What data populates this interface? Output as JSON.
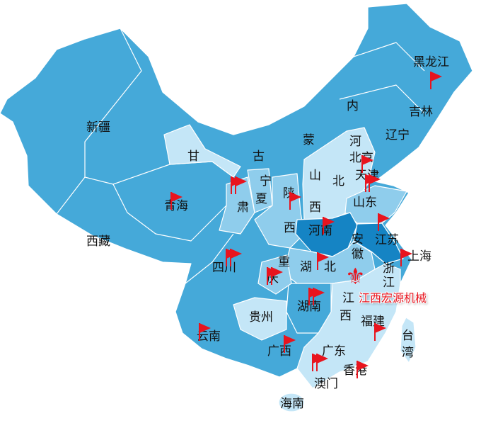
{
  "colors": {
    "base": "#45a9d9",
    "light": "#c4e6f7",
    "medium": "#8fcdec",
    "dark": "#1584c4",
    "flag": "#e8141e",
    "border": "#ffffff"
  },
  "provinces": {
    "heilongjiang": "黑龙江",
    "jilin": "吉林",
    "liaoning": "辽宁",
    "neimeng_1": "内",
    "neimeng_2": "蒙",
    "neimeng_3": "古",
    "xinjiang": "新疆",
    "xizang": "西藏",
    "qinghai": "青海",
    "gansu_1": "甘",
    "gansu_2": "肃",
    "ningxia_1": "宁",
    "ningxia_2": "夏",
    "shaanxi_1": "陕",
    "shaanxi_2": "西",
    "shanxi_1": "山",
    "shanxi_2": "西",
    "hebei_1": "河",
    "hebei_2": "北",
    "beijing": "北京",
    "tianjin": "天津",
    "shandong": "山东",
    "henan": "河南",
    "jiangsu": "江苏",
    "shanghai": "上海",
    "anhui_1": "安",
    "anhui_2": "徽",
    "zhejiang_1": "浙",
    "zhejiang_2": "江",
    "hubei_1": "湖",
    "hubei_2": "北",
    "chongqing_1": "重",
    "chongqing_2": "庆",
    "sichuan": "四川",
    "hunan": "湖南",
    "jiangxi_1": "江",
    "jiangxi_2": "西",
    "fujian": "福建",
    "guizhou": "贵州",
    "yunnan": "云南",
    "guangxi": "广西",
    "guangdong": "广东",
    "hongkong": "香港",
    "macau": "澳门",
    "hainan": "海南",
    "taiwan_1": "台",
    "taiwan_2": "湾"
  },
  "marker": {
    "label": "江西宏源机械",
    "icon": "fleur-de-lis-icon"
  }
}
